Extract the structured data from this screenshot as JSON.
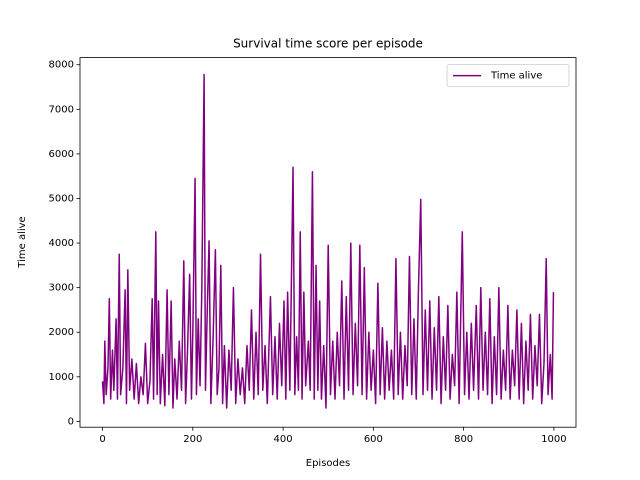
{
  "chart_data": {
    "type": "line",
    "title": "Survival time score per episode",
    "x_label": "Episodes",
    "y_label": "Time alive",
    "x": [
      0,
      3,
      5,
      8,
      12,
      15,
      18,
      22,
      25,
      30,
      33,
      37,
      40,
      45,
      50,
      53,
      56,
      60,
      65,
      70,
      75,
      80,
      85,
      90,
      95,
      100,
      105,
      110,
      113,
      118,
      121,
      124,
      128,
      133,
      138,
      143,
      147,
      152,
      156,
      160,
      165,
      170,
      175,
      180,
      184,
      188,
      193,
      197,
      200,
      205,
      208,
      212,
      216,
      220,
      225,
      228,
      232,
      236,
      240,
      245,
      250,
      254,
      258,
      262,
      266,
      270,
      275,
      280,
      285,
      290,
      295,
      300,
      305,
      310,
      315,
      320,
      325,
      330,
      335,
      340,
      345,
      350,
      355,
      360,
      365,
      372,
      377,
      382,
      387,
      392,
      397,
      402,
      406,
      410,
      415,
      422,
      426,
      430,
      434,
      438,
      442,
      446,
      450,
      456,
      460,
      465,
      469,
      473,
      477,
      481,
      485,
      490,
      495,
      500,
      505,
      510,
      515,
      520,
      525,
      530,
      535,
      540,
      545,
      550,
      555,
      560,
      565,
      570,
      575,
      580,
      585,
      590,
      595,
      600,
      605,
      610,
      615,
      620,
      625,
      630,
      635,
      640,
      645,
      650,
      655,
      660,
      665,
      670,
      675,
      680,
      685,
      690,
      695,
      700,
      705,
      710,
      715,
      720,
      725,
      730,
      735,
      740,
      745,
      750,
      755,
      760,
      765,
      770,
      775,
      780,
      785,
      790,
      797,
      802,
      807,
      812,
      817,
      822,
      828,
      833,
      838,
      843,
      848,
      853,
      858,
      863,
      868,
      873,
      878,
      883,
      888,
      893,
      898,
      903,
      908,
      913,
      918,
      923,
      928,
      933,
      938,
      943,
      948,
      953,
      958,
      963,
      968,
      973,
      978,
      983,
      987,
      992,
      996,
      999
    ],
    "series": [
      {
        "name": "Time alive",
        "color": "#800080",
        "values": [
          900,
          400,
          1800,
          600,
          1200,
          2750,
          500,
          1600,
          700,
          2300,
          500,
          3750,
          600,
          1200,
          2950,
          400,
          3400,
          700,
          1400,
          500,
          1300,
          400,
          1000,
          600,
          1750,
          400,
          900,
          2750,
          500,
          4250,
          600,
          2700,
          400,
          1500,
          350,
          2950,
          600,
          2700,
          300,
          1400,
          500,
          1800,
          700,
          3600,
          400,
          1500,
          3300,
          500,
          2000,
          5450,
          600,
          2300,
          800,
          3000,
          7780,
          700,
          2500,
          4050,
          400,
          1900,
          3850,
          600,
          1200,
          3500,
          400,
          1700,
          300,
          1600,
          700,
          3000,
          400,
          1400,
          600,
          1200,
          400,
          1700,
          700,
          2500,
          500,
          2000,
          600,
          3750,
          700,
          1700,
          400,
          2800,
          600,
          1900,
          500,
          2200,
          800,
          2700,
          500,
          2900,
          700,
          5700,
          600,
          1900,
          700,
          4250,
          500,
          2900,
          800,
          1800,
          700,
          5600,
          500,
          3500,
          700,
          2700,
          500,
          1700,
          300,
          3950,
          600,
          1800,
          500,
          2000,
          800,
          3150,
          500,
          2800,
          700,
          4000,
          600,
          2200,
          800,
          3950,
          600,
          3450,
          500,
          2000,
          700,
          1600,
          400,
          3100,
          600,
          2100,
          500,
          1800,
          700,
          1600,
          500,
          3650,
          600,
          2000,
          500,
          1700,
          800,
          3700,
          600,
          2300,
          500,
          3000,
          4980,
          600,
          2500,
          700,
          2700,
          500,
          2100,
          700,
          2800,
          400,
          1900,
          700,
          2600,
          500,
          1500,
          800,
          2900,
          400,
          4250,
          600,
          2000,
          500,
          2200,
          700,
          2600,
          500,
          3000,
          700,
          2000,
          600,
          2750,
          400,
          1900,
          600,
          3000,
          500,
          1600,
          700,
          2600,
          500,
          1600,
          800,
          2500,
          500,
          2200,
          400,
          1800,
          700,
          2400,
          500,
          1700,
          800,
          2400,
          400,
          1300,
          3650,
          600,
          1500,
          500,
          2900
        ]
      }
    ],
    "xlim": [
      -49.95,
      1048.95
    ],
    "ylim": [
      -130,
      8160
    ],
    "xticks": [
      0,
      200,
      400,
      600,
      800,
      1000
    ],
    "yticks": [
      0,
      1000,
      2000,
      3000,
      4000,
      5000,
      6000,
      7000,
      8000
    ],
    "grid": false,
    "legend": "upper right"
  }
}
